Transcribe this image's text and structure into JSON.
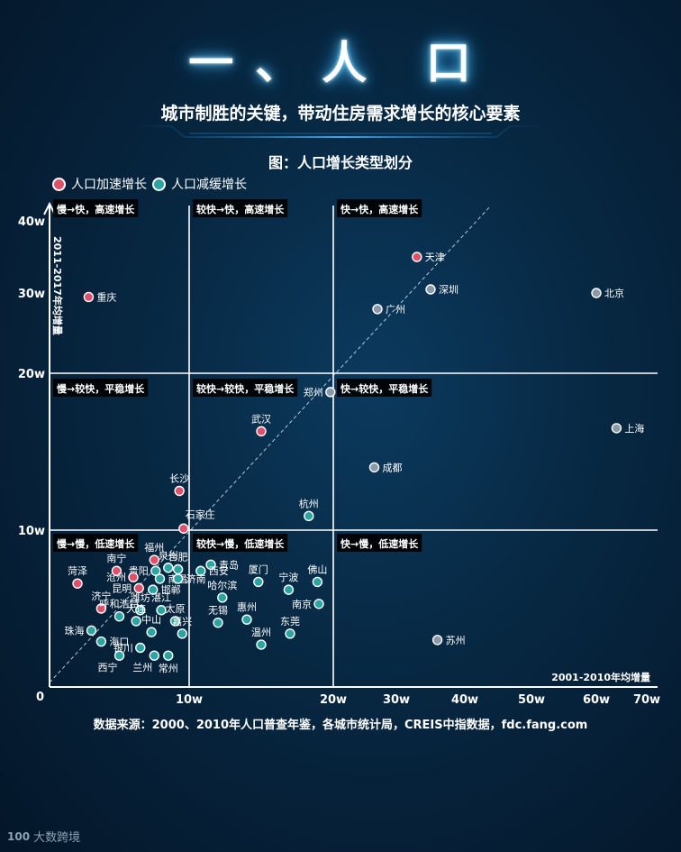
{
  "page": {
    "title": "一、人  口",
    "subtitle": "城市制胜的关键，带动住房需求增长的核心要素",
    "chart_title": "图：人口增长类型划分",
    "source": "数据来源：2000、2010年人口普查年鉴，各城市统计局，CREIS中指数据，fdc.fang.com",
    "logo_text": "大数跨境",
    "logo_mark": "100"
  },
  "colors": {
    "accelerating": "#e0506a",
    "slowing": "#2aa5a3",
    "slowing_gray": "#8a9aa8",
    "grid": "#ffffff"
  },
  "chart_data": {
    "type": "scatter",
    "title": "图：人口增长类型划分",
    "xlabel": "2001-2010年均增量",
    "ylabel": "2011-2017年均增量",
    "x_ticks": [
      {
        "value": 0,
        "label": "0"
      },
      {
        "value": 10,
        "label": "10w"
      },
      {
        "value": 20,
        "label": "20w"
      },
      {
        "value": 30,
        "label": "30w"
      },
      {
        "value": 40,
        "label": "40w"
      },
      {
        "value": 50,
        "label": "50w"
      },
      {
        "value": 60,
        "label": "60w"
      },
      {
        "value": 70,
        "label": "70w"
      }
    ],
    "y_ticks": [
      {
        "value": 10,
        "label": "10w"
      },
      {
        "value": 20,
        "label": "20w"
      },
      {
        "value": 30,
        "label": "30w"
      },
      {
        "value": 40,
        "label": "40w"
      }
    ],
    "legend": [
      {
        "key": "accelerating",
        "label": "人口加速增长"
      },
      {
        "key": "slowing",
        "label": "人口减缓增长"
      }
    ],
    "quadrant_labels": [
      {
        "label": "慢→快，高速增长",
        "col": 0,
        "row": 0
      },
      {
        "label": "较快→快，高速增长",
        "col": 1,
        "row": 0
      },
      {
        "label": "快→快，高速增长",
        "col": 2,
        "row": 0
      },
      {
        "label": "慢→较快，平稳增长",
        "col": 0,
        "row": 1
      },
      {
        "label": "较快→较快，平稳增长",
        "col": 1,
        "row": 1
      },
      {
        "label": "快→较快，平稳增长",
        "col": 2,
        "row": 1
      },
      {
        "label": "慢→慢，低速增长",
        "col": 0,
        "row": 2
      },
      {
        "label": "较快→慢，低速增长",
        "col": 1,
        "row": 2
      },
      {
        "label": "快→慢，低速增长",
        "col": 2,
        "row": 2
      }
    ],
    "points": [
      {
        "name": "天津",
        "x": 33,
        "y": 35,
        "type": "accelerating",
        "label": "right"
      },
      {
        "name": "深圳",
        "x": 35,
        "y": 30.5,
        "type": "gray",
        "label": "right"
      },
      {
        "name": "北京",
        "x": 60,
        "y": 30,
        "type": "gray",
        "label": "right"
      },
      {
        "name": "广州",
        "x": 27,
        "y": 28,
        "type": "gray",
        "label": "right"
      },
      {
        "name": "重庆",
        "x": 2.8,
        "y": 29.5,
        "type": "accelerating",
        "label": "right"
      },
      {
        "name": "郑州",
        "x": 19.8,
        "y": 18.8,
        "type": "gray",
        "label": "left"
      },
      {
        "name": "武汉",
        "x": 15,
        "y": 16.3,
        "type": "accelerating",
        "label": "top"
      },
      {
        "name": "上海",
        "x": 64,
        "y": 16.5,
        "type": "gray",
        "label": "right"
      },
      {
        "name": "成都",
        "x": 26.5,
        "y": 14,
        "type": "gray",
        "label": "right"
      },
      {
        "name": "长沙",
        "x": 9.3,
        "y": 12.5,
        "type": "accelerating",
        "label": "top"
      },
      {
        "name": "杭州",
        "x": 18.3,
        "y": 10.9,
        "type": "slowing",
        "label": "top"
      },
      {
        "name": "石家庄",
        "x": 9.6,
        "y": 10.1,
        "type": "accelerating",
        "label": "top-right"
      },
      {
        "name": "福州",
        "x": 7.5,
        "y": 8.1,
        "type": "accelerating",
        "label": "top"
      },
      {
        "name": "泉州",
        "x": 8.5,
        "y": 7.6,
        "type": "slowing",
        "label": "top"
      },
      {
        "name": "合肥",
        "x": 9.2,
        "y": 7.5,
        "type": "slowing",
        "label": "top"
      },
      {
        "name": "青岛",
        "x": 11.5,
        "y": 7.8,
        "type": "slowing",
        "label": "right"
      },
      {
        "name": "西安",
        "x": 10.8,
        "y": 7.4,
        "type": "slowing",
        "label": "right"
      },
      {
        "name": "贵阳",
        "x": 7.6,
        "y": 7.4,
        "type": "slowing",
        "label": "left"
      },
      {
        "name": "南宁",
        "x": 4.8,
        "y": 7.4,
        "type": "accelerating",
        "label": "top"
      },
      {
        "name": "菏泽",
        "x": 2.0,
        "y": 6.6,
        "type": "accelerating",
        "label": "top"
      },
      {
        "name": "沧州",
        "x": 6.0,
        "y": 7.0,
        "type": "accelerating",
        "label": "left"
      },
      {
        "name": "南昌",
        "x": 7.9,
        "y": 6.9,
        "type": "slowing",
        "label": "right"
      },
      {
        "name": "济南",
        "x": 9.2,
        "y": 6.9,
        "type": "slowing",
        "label": "right"
      },
      {
        "name": "厦门",
        "x": 14.8,
        "y": 6.7,
        "type": "slowing",
        "label": "top"
      },
      {
        "name": "佛山",
        "x": 18.9,
        "y": 6.7,
        "type": "slowing",
        "label": "top"
      },
      {
        "name": "宁波",
        "x": 16.9,
        "y": 6.2,
        "type": "slowing",
        "label": "top"
      },
      {
        "name": "昆明",
        "x": 6.4,
        "y": 6.3,
        "type": "accelerating",
        "label": "left"
      },
      {
        "name": "邯郸",
        "x": 7.4,
        "y": 6.2,
        "type": "slowing",
        "label": "right"
      },
      {
        "name": "哈尔滨",
        "x": 12.3,
        "y": 5.7,
        "type": "slowing",
        "label": "top"
      },
      {
        "name": "南京",
        "x": 19.0,
        "y": 5.3,
        "type": "slowing",
        "label": "left"
      },
      {
        "name": "济宁",
        "x": 3.7,
        "y": 5.0,
        "type": "accelerating",
        "label": "top"
      },
      {
        "name": "潍坊",
        "x": 6.5,
        "y": 4.9,
        "type": "slowing",
        "label": "top"
      },
      {
        "name": "湛江",
        "x": 8.0,
        "y": 4.9,
        "type": "slowing",
        "label": "top"
      },
      {
        "name": "呼和浩特",
        "x": 5.0,
        "y": 4.5,
        "type": "slowing",
        "label": "top"
      },
      {
        "name": "大连",
        "x": 6.2,
        "y": 4.2,
        "type": "slowing",
        "label": "top"
      },
      {
        "name": "太原",
        "x": 9.0,
        "y": 4.2,
        "type": "slowing",
        "label": "top"
      },
      {
        "name": "无锡",
        "x": 12.0,
        "y": 4.1,
        "type": "slowing",
        "label": "top"
      },
      {
        "name": "惠州",
        "x": 14.0,
        "y": 4.3,
        "type": "slowing",
        "label": "top"
      },
      {
        "name": "珠海",
        "x": 3.0,
        "y": 3.6,
        "type": "slowing",
        "label": "left"
      },
      {
        "name": "中山",
        "x": 7.3,
        "y": 3.5,
        "type": "slowing",
        "label": "top"
      },
      {
        "name": "嘉兴",
        "x": 9.5,
        "y": 3.4,
        "type": "slowing",
        "label": "top"
      },
      {
        "name": "海口",
        "x": 3.7,
        "y": 2.9,
        "type": "slowing",
        "label": "right"
      },
      {
        "name": "温州",
        "x": 15.0,
        "y": 2.7,
        "type": "slowing",
        "label": "top"
      },
      {
        "name": "东莞",
        "x": 17.0,
        "y": 3.4,
        "type": "slowing",
        "label": "top"
      },
      {
        "name": "银川",
        "x": 6.5,
        "y": 2.5,
        "type": "slowing",
        "label": "left"
      },
      {
        "name": "西宁",
        "x": 5.0,
        "y": 2.0,
        "type": "slowing",
        "label": "bottom-left"
      },
      {
        "name": "兰州",
        "x": 7.5,
        "y": 2.0,
        "type": "slowing",
        "label": "bottom-left"
      },
      {
        "name": "常州",
        "x": 8.5,
        "y": 2.0,
        "type": "slowing",
        "label": "bottom"
      },
      {
        "name": "苏州",
        "x": 36,
        "y": 3.0,
        "type": "gray",
        "label": "right"
      }
    ]
  }
}
